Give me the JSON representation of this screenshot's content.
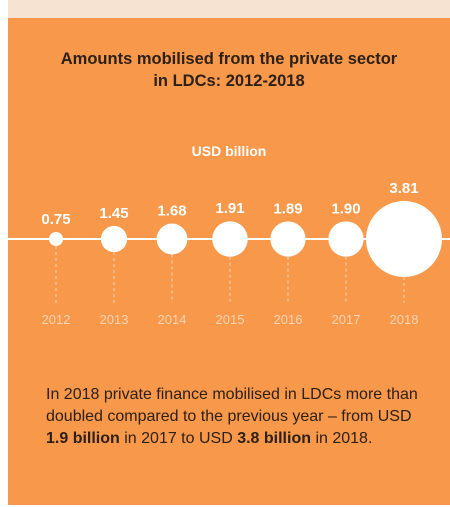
{
  "title": {
    "line1": "Amounts mobilised from the private sector",
    "line2": "in LDCs: 2012-2018"
  },
  "colors": {
    "background": "#f7984a",
    "bubble": "#ffffff",
    "title_text": "#2d2016",
    "year_label": "#fbd3b1"
  },
  "chart_data": {
    "type": "bubble",
    "unit_label": "USD billion",
    "categories": [
      "2012",
      "2013",
      "2014",
      "2015",
      "2016",
      "2017",
      "2018"
    ],
    "values": [
      0.75,
      1.45,
      1.68,
      1.91,
      1.89,
      1.9,
      3.81
    ],
    "value_labels": [
      "0.75",
      "1.45",
      "1.68",
      "1.91",
      "1.89",
      "1.90",
      "3.81"
    ],
    "grid": false,
    "legend": "none"
  },
  "note": {
    "p1": "In 2018 private finance mobilised in LDCs more than doubled compared to the previous year – from USD ",
    "b1": "1.9 billion",
    "p2": " in 2017 to USD ",
    "b2": "3.8 billion",
    "p3": " in 2018."
  }
}
